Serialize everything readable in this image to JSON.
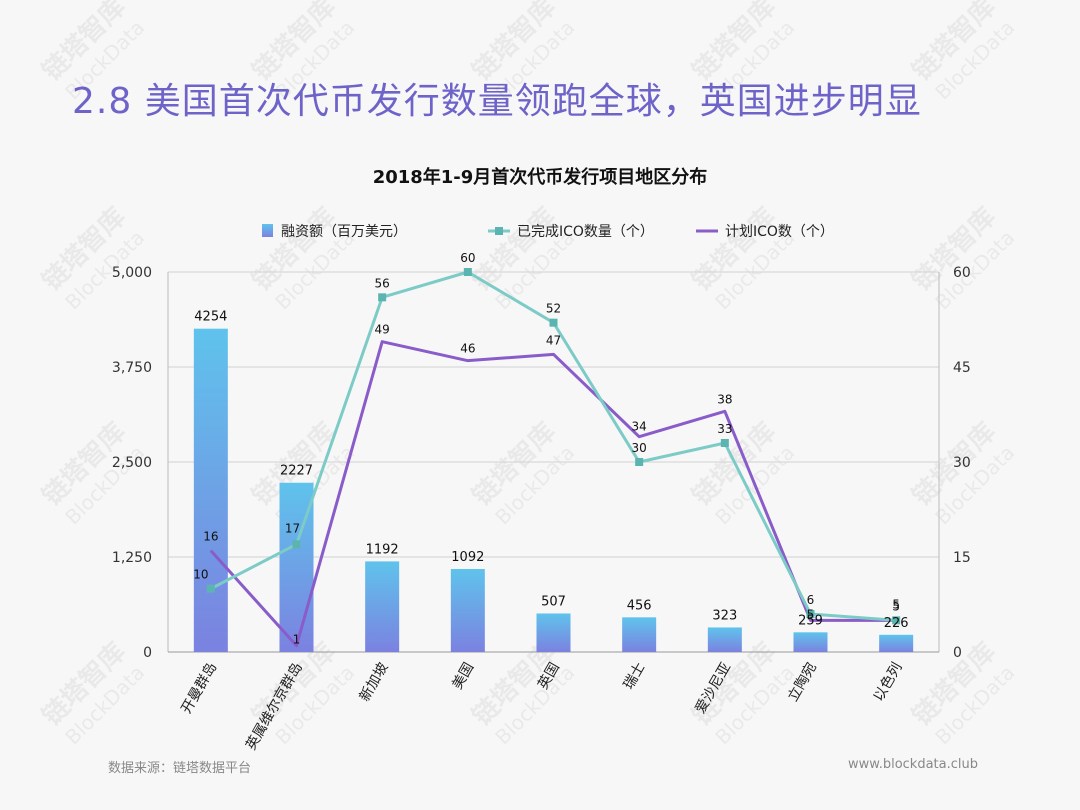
{
  "headline": "2.8  美国首次代币发行数量领跑全球，英国进步明显",
  "footer": {
    "source": "数据来源：链塔数据平台",
    "website": "www.blockdata.club"
  },
  "watermark": {
    "cn": "链塔智库",
    "en": "BlockData"
  },
  "colors": {
    "headline": "#6d63c9",
    "bar_top": "#5fc3ec",
    "bar_bottom": "#7b82e0",
    "completed_line": "#7ccbc7",
    "planned_line": "#8a5cc9"
  },
  "chart_data": {
    "type": "bar",
    "title": "2018年1-9月首次代币发行项目地区分布",
    "categories": [
      "开曼群岛",
      "英属维尔京群岛",
      "新加坡",
      "美国",
      "英国",
      "瑞士",
      "爱沙尼亚",
      "立陶宛",
      "以色列"
    ],
    "series": [
      {
        "name": "融资额（百万美元）",
        "type": "bar",
        "axis": "left",
        "values": [
          4254,
          2227,
          1192,
          1092,
          507,
          456,
          323,
          259,
          226
        ]
      },
      {
        "name": "已完成ICO数量（个）",
        "type": "line",
        "axis": "right",
        "values": [
          10,
          17,
          56,
          60,
          52,
          30,
          33,
          6,
          5
        ]
      },
      {
        "name": "计划ICO数（个）",
        "type": "line",
        "axis": "right",
        "values": [
          16,
          1,
          49,
          46,
          47,
          34,
          38,
          5,
          5
        ]
      }
    ],
    "y_left": {
      "ylim": [
        0,
        5000
      ],
      "ticks": [
        "0",
        "1,250",
        "2,500",
        "3,750",
        "5,000"
      ]
    },
    "y_right": {
      "ylim": [
        0,
        60
      ],
      "ticks": [
        "0",
        "15",
        "30",
        "45",
        "60"
      ]
    },
    "grid": true,
    "legend_position": "top"
  }
}
